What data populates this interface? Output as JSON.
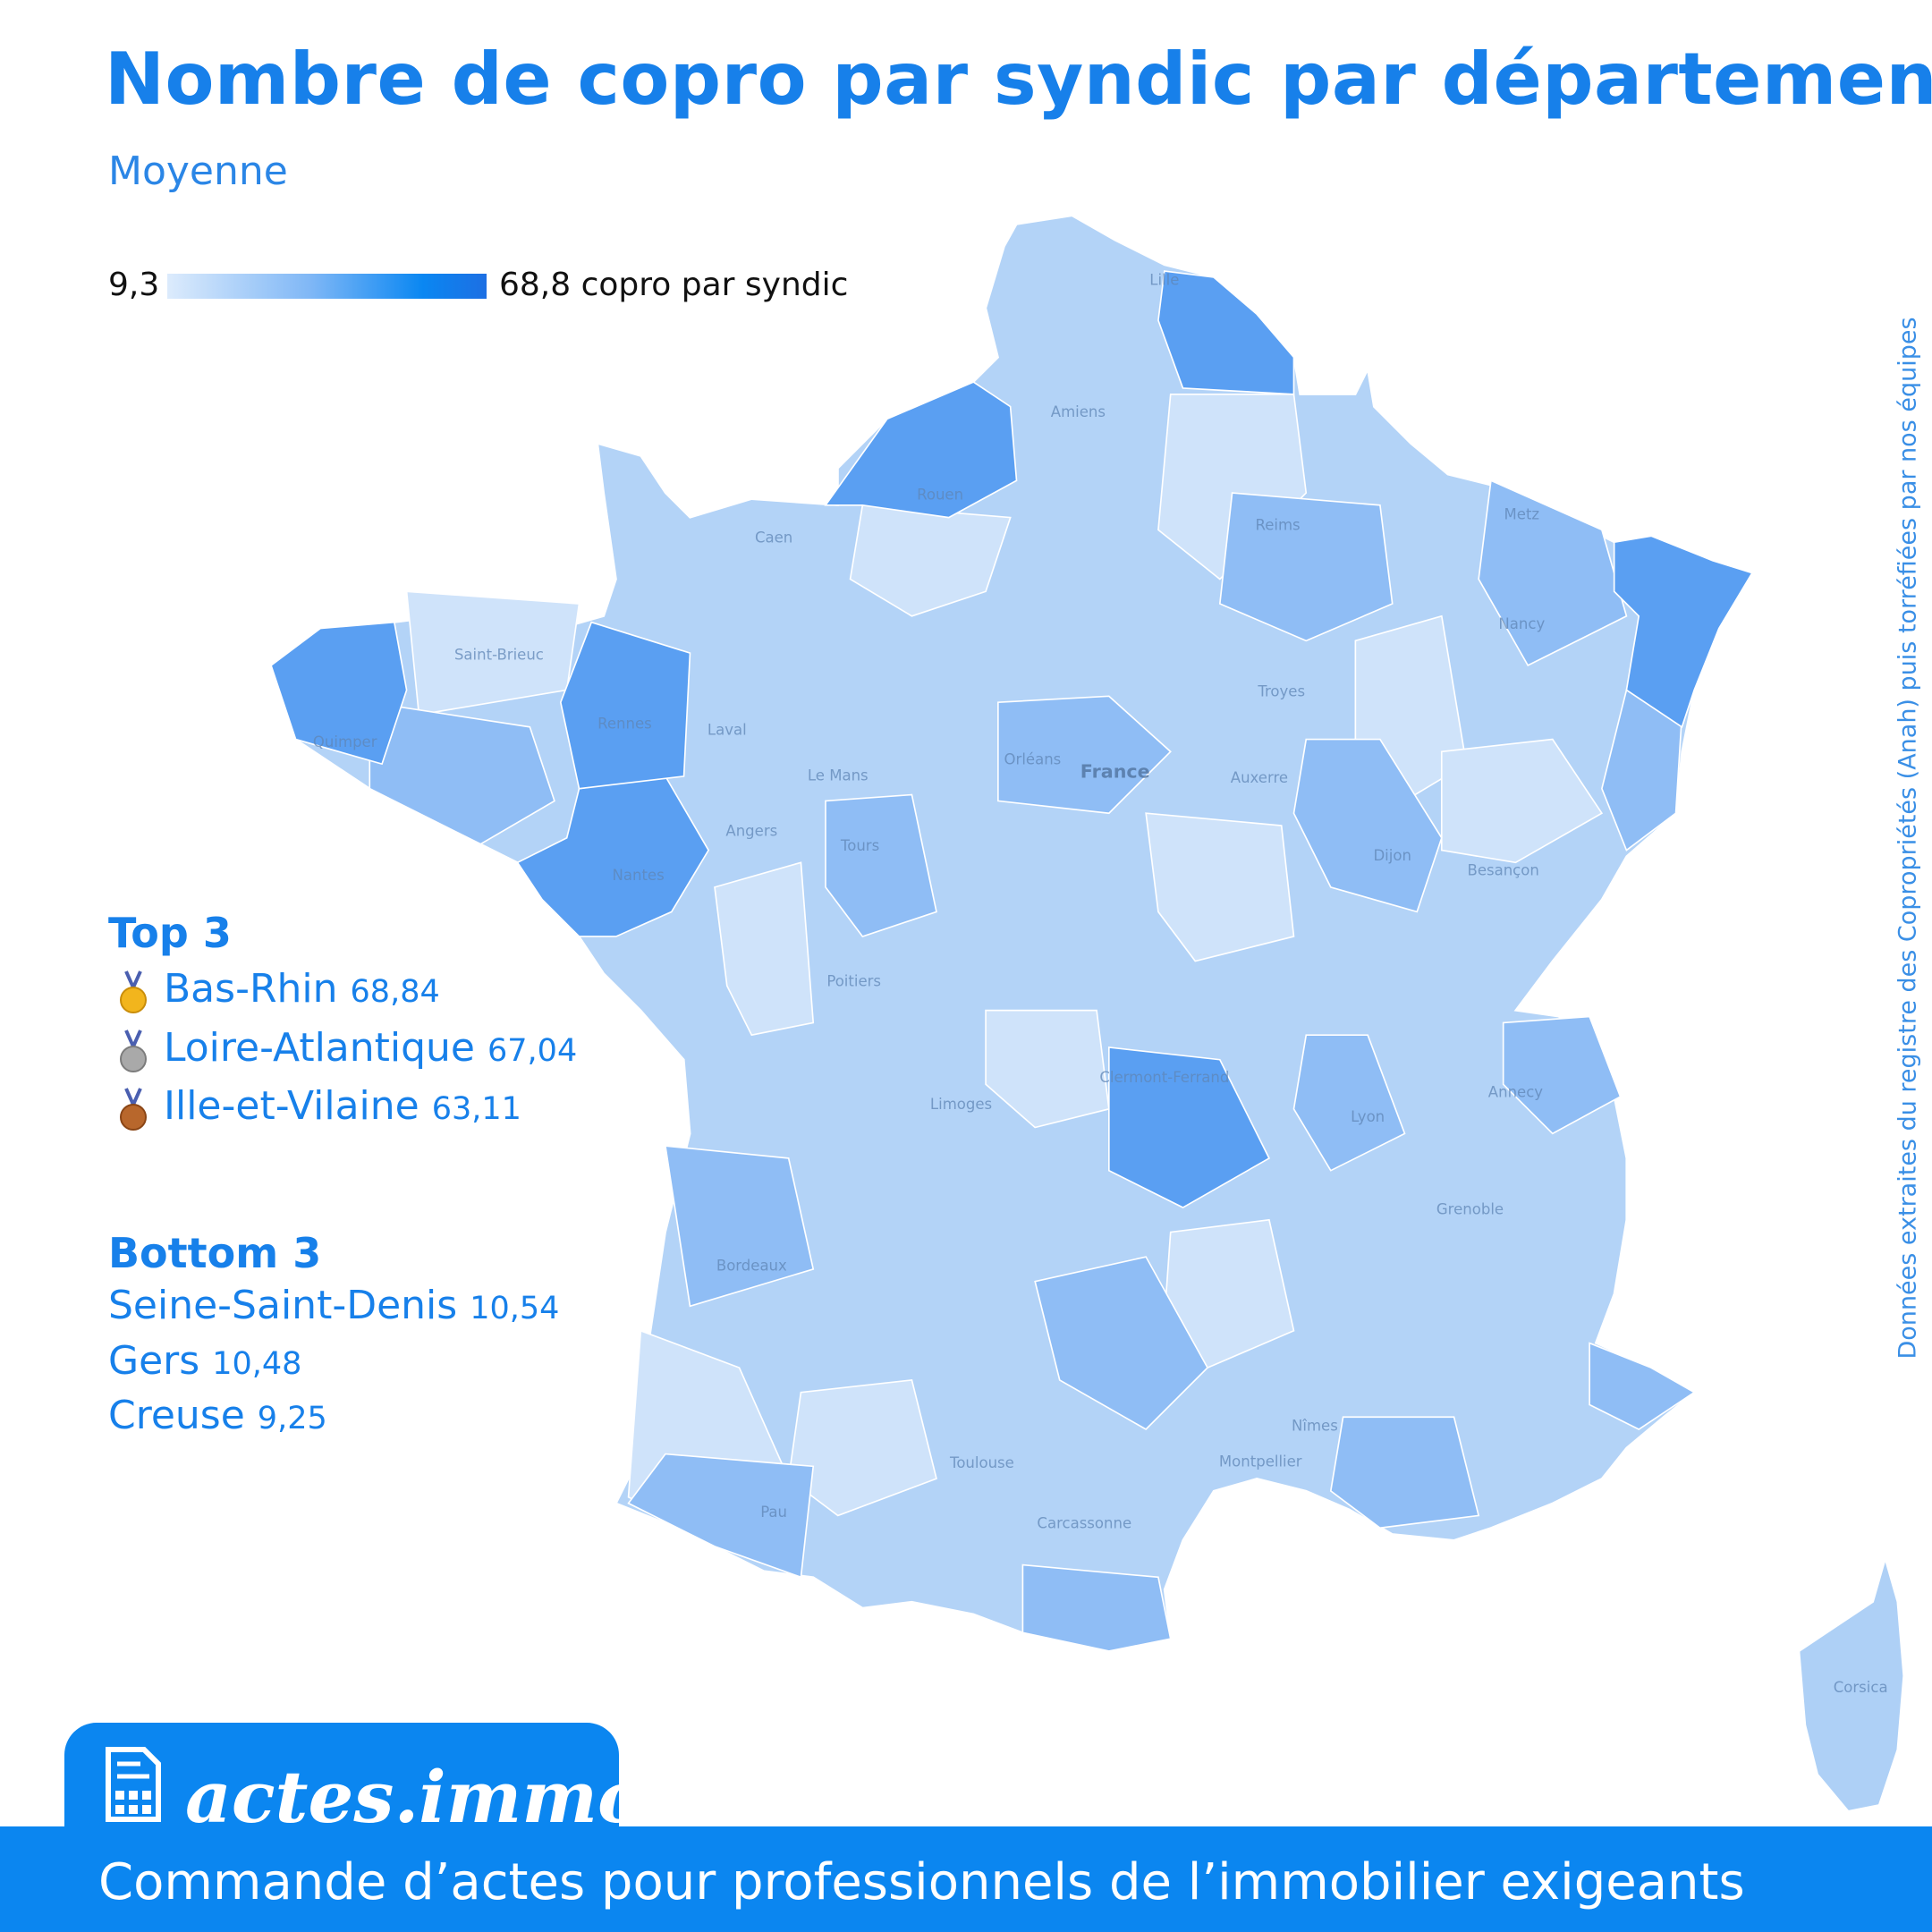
{
  "header": {
    "title": "Nombre de copro par syndic par département",
    "subtitle": "Moyenne"
  },
  "legend": {
    "min": "9,3",
    "max": "68,8",
    "unit": "copro par syndic"
  },
  "top": {
    "heading": "Top 3",
    "items": [
      {
        "name": "Bas-Rhin",
        "value": "68,84"
      },
      {
        "name": "Loire-Atlantique",
        "value": "67,04"
      },
      {
        "name": "Ille-et-Vilaine",
        "value": "63,11"
      }
    ]
  },
  "bottom": {
    "heading": "Bottom 3",
    "items": [
      {
        "name": "Seine-Saint-Denis",
        "value": "10,54"
      },
      {
        "name": "Gers",
        "value": "10,48"
      },
      {
        "name": "Creuse",
        "value": "9,25"
      }
    ]
  },
  "map_labels": [
    "Lille",
    "Amiens",
    "Rouen",
    "Caen",
    "Reims",
    "Metz",
    "Nancy",
    "Saint-Brieuc",
    "Quimper",
    "Rennes",
    "Laval",
    "Le Mans",
    "Angers",
    "Nantes",
    "Orléans",
    "France",
    "Tours",
    "Troyes",
    "Auxerre",
    "Dijon",
    "Besançon",
    "Poitiers",
    "Limoges",
    "Clermont-Ferrand",
    "Lyon",
    "Annecy",
    "Grenoble",
    "Bordeaux",
    "Toulouse",
    "Montpellier",
    "Nîmes",
    "Carcassonne",
    "Pau",
    "Corsica"
  ],
  "source": "Données extraites du registre des Copropriétés (Anah) puis torréfiées par nos équipes",
  "footer": {
    "brand": "actes.immo",
    "tagline": "Commande d’actes pour professionnels de l’immobilier exigeants"
  }
}
